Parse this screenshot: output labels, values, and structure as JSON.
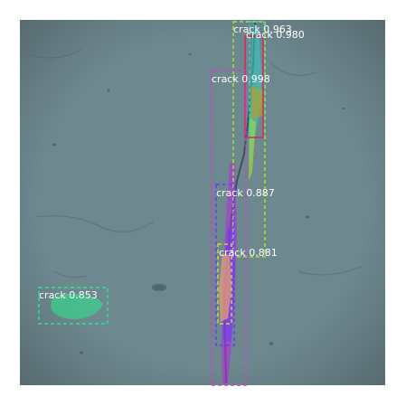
{
  "image": {
    "subject": "concrete-surface",
    "background_color": "#ffffff",
    "surface_color": "#6f8a91"
  },
  "detections": [
    {
      "id": "det-1",
      "label": "crack 0.963",
      "color": "#2fd0c8"
    },
    {
      "id": "det-2",
      "label": "crack 0.980",
      "color": "#e0205a"
    },
    {
      "id": "det-3",
      "label": "crack 0.998",
      "color": "#a8e030"
    },
    {
      "id": "det-4",
      "label": "crack 0.887",
      "color": "#d040c8"
    },
    {
      "id": "det-5",
      "label": "crack 0.881",
      "color": "#6a3cff"
    },
    {
      "id": "det-6",
      "label": "crack 0.853",
      "color": "#e6a070"
    },
    {
      "id": "det-7",
      "label": "crack 0.853",
      "color": "#2ee08c"
    }
  ]
}
